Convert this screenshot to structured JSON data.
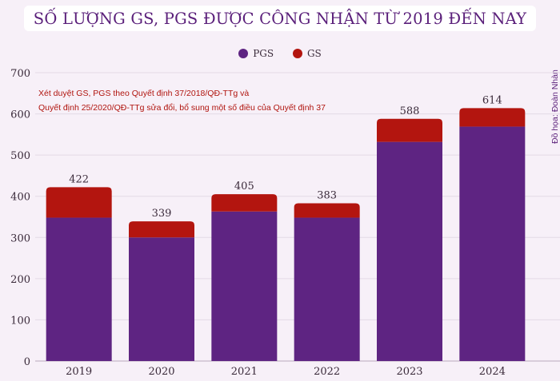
{
  "chart_data": {
    "type": "bar",
    "stacked": true,
    "title": "SỐ LƯỢNG GS, PGS ĐƯỢC CÔNG NHẬN TỪ 2019 ĐẾN NAY",
    "categories": [
      "2019",
      "2020",
      "2021",
      "2022",
      "2023",
      "2024"
    ],
    "series": [
      {
        "name": "PGS",
        "color": "#5e2482",
        "values": [
          348,
          300,
          363,
          348,
          532,
          569
        ]
      },
      {
        "name": "GS",
        "color": "#b3150f",
        "values": [
          74,
          39,
          42,
          35,
          56,
          45
        ]
      }
    ],
    "totals": [
      "422",
      "339",
      "405",
      "383",
      "588",
      "614"
    ],
    "ylim": [
      0,
      700
    ],
    "yticks": [
      "0",
      "100",
      "200",
      "300",
      "400",
      "500",
      "600",
      "700"
    ],
    "grid": true,
    "legend_position": "top-center",
    "annotation": [
      "Xét duyệt GS, PGS theo Quyết định 37/2018/QĐ-TTg  và",
      "Quyết định 25/2020/QĐ-TTg sửa đổi, bổ sung một số điều của Quyết định 37"
    ],
    "credit": "Đồ họa: Đoàn Nhàn"
  }
}
